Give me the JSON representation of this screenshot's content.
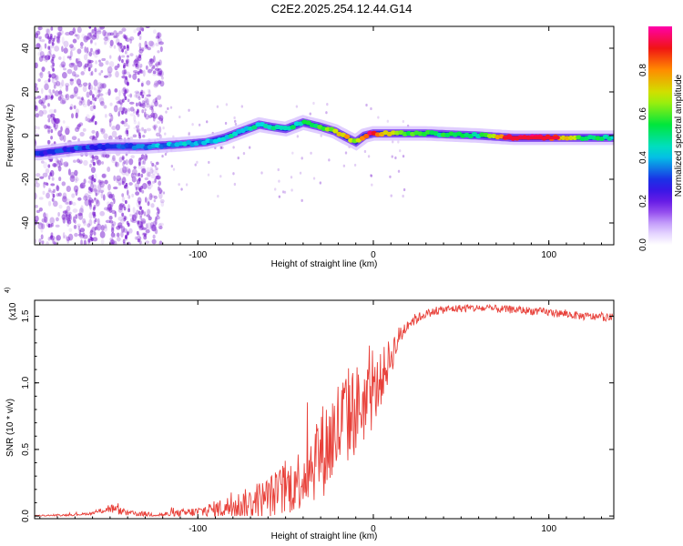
{
  "figure_title": "C2E2.2025.254.12.44.G14",
  "chart_data": [
    {
      "type": "heatmap",
      "title": "C2E2.2025.254.12.44.G14",
      "xlabel": "Height of straight line (km)",
      "ylabel": "Frequency (Hz)",
      "xlim": [
        -193,
        137
      ],
      "ylim": [
        -50,
        50
      ],
      "x_ticks": [
        -100,
        0,
        100
      ],
      "y_ticks": [
        -40,
        -20,
        0,
        20,
        40
      ],
      "colorbar": {
        "label": "Normalized spectral amplitude",
        "range": [
          0,
          1
        ],
        "ticks": [
          "0.0",
          "0.2",
          "0.4",
          "0.6",
          "0.8"
        ]
      },
      "ridge": {
        "x": [
          -190,
          -170,
          -150,
          -130,
          -110,
          -95,
          -85,
          -75,
          -65,
          -58,
          -50,
          -40,
          -30,
          -22,
          -15,
          -10,
          -5,
          0,
          10,
          30,
          60,
          80,
          100,
          120,
          137
        ],
        "frequency": [
          -8,
          -6,
          -5,
          -5,
          -4,
          -3,
          -1,
          2,
          5,
          4,
          3,
          6,
          4,
          2,
          -1,
          -3,
          0,
          1,
          1,
          1,
          0,
          -1,
          -1,
          -1,
          -1
        ],
        "amplitude": [
          0.25,
          0.3,
          0.3,
          0.35,
          0.4,
          0.4,
          0.45,
          0.45,
          0.45,
          0.45,
          0.45,
          0.5,
          0.55,
          0.65,
          0.75,
          0.6,
          0.8,
          0.95,
          0.65,
          0.55,
          0.5,
          0.95,
          0.9,
          0.55,
          0.45
        ]
      },
      "noise_region": {
        "x_from": -193,
        "x_to": -130
      }
    },
    {
      "type": "line",
      "xlabel": "Height of straight line (km)",
      "ylabel": "SNR (10 * v/v)",
      "y_scale_label": "(x10",
      "y_scale_exponent": "4",
      "xlim": [
        -193,
        137
      ],
      "ylim": [
        -0.02,
        1.62
      ],
      "x_ticks": [
        -100,
        0,
        100
      ],
      "y_ticks": [
        "0.0",
        "0.5",
        "1.0",
        "1.5"
      ],
      "series": [
        {
          "name": "SNR",
          "color": "#e8413a",
          "x": [
            -193,
            -170,
            -160,
            -155,
            -150,
            -140,
            -120,
            -100,
            -85,
            -70,
            -60,
            -50,
            -40,
            -35,
            -30,
            -25,
            -20,
            -15,
            -10,
            -5,
            0,
            5,
            10,
            15,
            20,
            30,
            40,
            50,
            60,
            80,
            100,
            120,
            137
          ],
          "mean": [
            0.0,
            0.01,
            0.02,
            0.04,
            0.06,
            0.02,
            0.01,
            0.03,
            0.06,
            0.1,
            0.14,
            0.2,
            0.3,
            0.4,
            0.48,
            0.55,
            0.65,
            0.75,
            0.8,
            0.85,
            0.9,
            1.05,
            1.2,
            1.35,
            1.45,
            1.52,
            1.55,
            1.56,
            1.56,
            1.55,
            1.53,
            1.5,
            1.49
          ],
          "noise": [
            0.005,
            0.008,
            0.01,
            0.02,
            0.04,
            0.02,
            0.02,
            0.04,
            0.08,
            0.12,
            0.16,
            0.2,
            0.25,
            0.3,
            0.35,
            0.38,
            0.4,
            0.38,
            0.35,
            0.3,
            0.25,
            0.2,
            0.15,
            0.08,
            0.05,
            0.03,
            0.03,
            0.03,
            0.03,
            0.03,
            0.03,
            0.03,
            0.03
          ]
        }
      ]
    }
  ],
  "colors": {
    "snr_line": "#e8413a",
    "noise_dots": "#7a1fd0"
  }
}
